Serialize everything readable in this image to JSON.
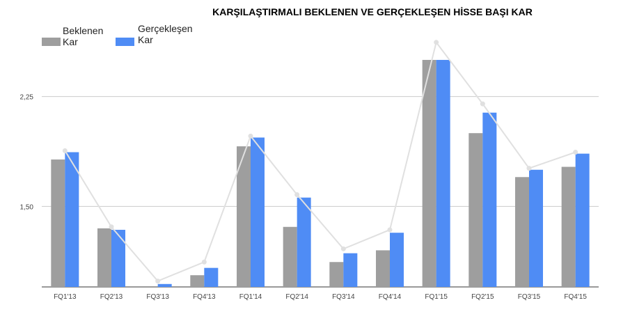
{
  "chart_data": {
    "type": "bar",
    "title": "KARŞILAŞTIRMALI BEKLENEN VE GERÇEKLEŞEN HİSSE BAŞI KAR",
    "xlabel": "",
    "ylabel": "",
    "ylim": [
      0.95,
      2.6
    ],
    "yticks": [
      1.5,
      2.25
    ],
    "ytick_labels": [
      "1,50",
      "2,25"
    ],
    "legend_position": "top-left",
    "grid": true,
    "categories": [
      "FQ1'13",
      "FQ2'13",
      "FQ3'13",
      "FQ4'13",
      "FQ1'14",
      "FQ2'14",
      "FQ3'14",
      "FQ4'14",
      "FQ1'15",
      "FQ2'15",
      "FQ3'15",
      "FQ4'15"
    ],
    "series": [
      {
        "name": "Beklenen Kar",
        "color": "#9e9e9e",
        "values": [
          1.82,
          1.35,
          0.92,
          1.03,
          1.91,
          1.36,
          1.12,
          1.2,
          2.5,
          2.0,
          1.7,
          1.77
        ]
      },
      {
        "name": "Gerçekleşen Kar",
        "color": "#4f8cf5",
        "values": [
          1.87,
          1.34,
          0.97,
          1.08,
          1.97,
          1.56,
          1.18,
          1.32,
          2.5,
          2.14,
          1.75,
          1.86
        ]
      }
    ],
    "line": {
      "color": "#e0e0e0",
      "values": [
        1.88,
        1.36,
        0.99,
        1.12,
        1.98,
        1.58,
        1.21,
        1.34,
        2.62,
        2.2,
        1.76,
        1.87
      ]
    }
  }
}
